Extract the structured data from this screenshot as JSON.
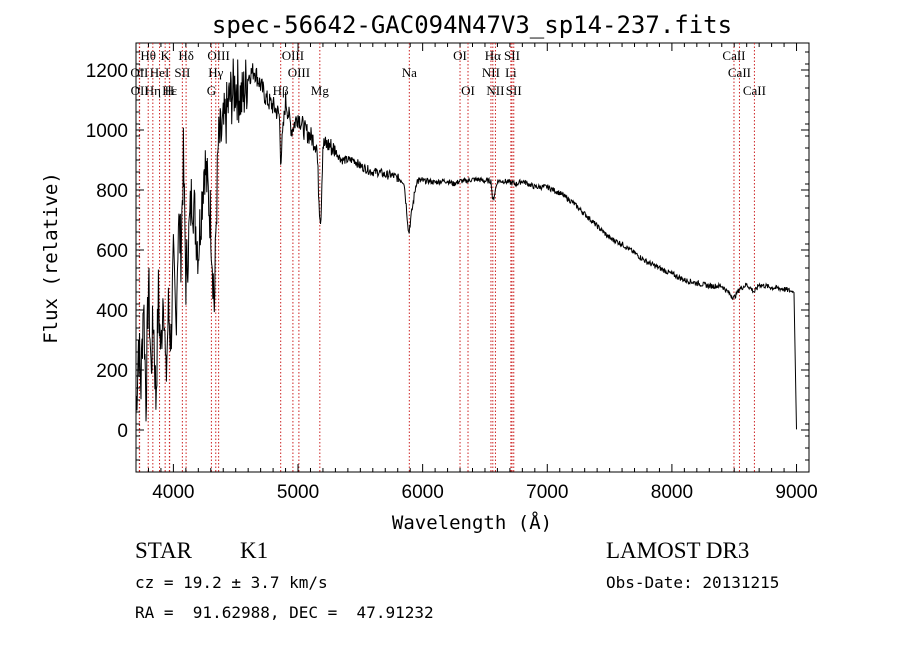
{
  "chart_data": {
    "type": "line",
    "title": "spec-56642-GAC094N47V3_sp14-237.fits",
    "xlabel": "Wavelength (Å)",
    "ylabel": "Flux (relative)",
    "xlim": [
      3700,
      9100
    ],
    "ylim": [
      -140,
      1290
    ],
    "x_ticks": [
      4000,
      5000,
      6000,
      7000,
      8000,
      9000
    ],
    "y_ticks": [
      0,
      200,
      400,
      600,
      800,
      1000,
      1200
    ],
    "series": [
      {
        "name": "flux",
        "x": [
          3700,
          3720,
          3740,
          3760,
          3780,
          3800,
          3820,
          3840,
          3860,
          3880,
          3900,
          3920,
          3940,
          3960,
          3980,
          4000,
          4020,
          4040,
          4060,
          4080,
          4100,
          4150,
          4200,
          4250,
          4300,
          4330,
          4340,
          4360,
          4400,
          4450,
          4500,
          4550,
          4600,
          4650,
          4700,
          4750,
          4800,
          4850,
          4861,
          4900,
          4950,
          5000,
          5050,
          5100,
          5150,
          5170,
          5183,
          5200,
          5250,
          5300,
          5350,
          5400,
          5450,
          5500,
          5550,
          5600,
          5650,
          5700,
          5750,
          5800,
          5850,
          5890,
          5896,
          5950,
          6000,
          6050,
          6100,
          6150,
          6200,
          6250,
          6300,
          6350,
          6400,
          6450,
          6500,
          6550,
          6563,
          6600,
          6650,
          6700,
          6750,
          6800,
          6850,
          6900,
          6950,
          7000,
          7100,
          7200,
          7300,
          7400,
          7500,
          7600,
          7700,
          7800,
          7900,
          8000,
          8100,
          8200,
          8300,
          8400,
          8498,
          8542,
          8600,
          8662,
          8700,
          8800,
          8900,
          8980,
          9000
        ],
        "y": [
          50,
          300,
          150,
          450,
          100,
          500,
          200,
          380,
          100,
          450,
          250,
          500,
          150,
          400,
          300,
          550,
          350,
          700,
          600,
          900,
          500,
          800,
          600,
          900,
          700,
          400,
          650,
          950,
          1000,
          1100,
          1150,
          1100,
          1180,
          1200,
          1150,
          1100,
          1080,
          1050,
          900,
          1100,
          1000,
          1050,
          1000,
          980,
          950,
          750,
          700,
          950,
          950,
          930,
          900,
          900,
          900,
          880,
          870,
          860,
          860,
          850,
          850,
          840,
          830,
          650,
          680,
          830,
          830,
          830,
          825,
          830,
          830,
          820,
          830,
          830,
          835,
          835,
          830,
          830,
          760,
          830,
          830,
          825,
          820,
          830,
          820,
          810,
          810,
          810,
          790,
          760,
          720,
          680,
          640,
          620,
          590,
          560,
          540,
          520,
          500,
          490,
          480,
          480,
          440,
          470,
          485,
          460,
          485,
          475,
          470,
          460,
          0
        ]
      }
    ],
    "spectral_lines": [
      {
        "label": "Hθ",
        "x": 3798,
        "row": 0
      },
      {
        "label": "K",
        "x": 3934,
        "row": 0
      },
      {
        "label": "Hδ",
        "x": 4102,
        "row": 0
      },
      {
        "label": "OIII",
        "x": 4363,
        "row": 0
      },
      {
        "label": "OIII",
        "x": 4959,
        "row": 0
      },
      {
        "label": "OI",
        "x": 6300,
        "row": 0
      },
      {
        "label": "Hα",
        "x": 6563,
        "row": 0
      },
      {
        "label": "SII",
        "x": 6717,
        "row": 0
      },
      {
        "label": "CaII",
        "x": 8498,
        "row": 0
      },
      {
        "label": "OII",
        "x": 3727,
        "row": 1
      },
      {
        "label": "HeI",
        "x": 3889,
        "row": 1
      },
      {
        "label": "SII",
        "x": 4072,
        "row": 1
      },
      {
        "label": "Hγ",
        "x": 4340,
        "row": 1
      },
      {
        "label": "OIII",
        "x": 5007,
        "row": 1
      },
      {
        "label": "Na",
        "x": 5893,
        "row": 1
      },
      {
        "label": "NII",
        "x": 6548,
        "row": 1
      },
      {
        "label": "Li",
        "x": 6708,
        "row": 1
      },
      {
        "label": "CaII",
        "x": 8542,
        "row": 1
      },
      {
        "label": "OII",
        "x": 3729,
        "row": 2
      },
      {
        "label": "Hε",
        "x": 3970,
        "row": 2
      },
      {
        "label": "Hη",
        "x": 3835,
        "row": 2
      },
      {
        "label": "H",
        "x": 3968,
        "row": 2
      },
      {
        "label": "G",
        "x": 4305,
        "row": 2
      },
      {
        "label": "Hβ",
        "x": 4861,
        "row": 2
      },
      {
        "label": "Mg",
        "x": 5175,
        "row": 2
      },
      {
        "label": "OI",
        "x": 6364,
        "row": 2
      },
      {
        "label": "NII",
        "x": 6584,
        "row": 2
      },
      {
        "label": "SII",
        "x": 6731,
        "row": 2
      },
      {
        "label": "CaII",
        "x": 8662,
        "row": 2
      }
    ]
  },
  "info": {
    "class_label": "STAR",
    "subclass": "K1",
    "survey": "LAMOST DR3",
    "redshift": "cz = 19.2 ± 3.7 km/s",
    "obs_date": "Obs-Date: 20131215",
    "coords": "RA =  91.62988, DEC =  47.91232"
  },
  "colors": {
    "line_marker": "#cc2222",
    "spectrum": "#000000"
  }
}
